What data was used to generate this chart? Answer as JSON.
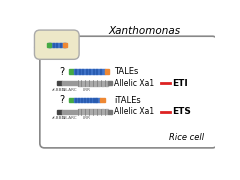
{
  "title": "Xanthomonas",
  "bottom_label": "Rice cell",
  "row1_label": "TALEs",
  "row2_label": "iTALEs",
  "allelic_label": "Allelic Xa1",
  "eti_label": "ETI",
  "ets_label": "ETS",
  "question_mark": "?",
  "nb_arc_label": "NB-ARC",
  "lrr_label": "LRR",
  "zf_bbd_label": "zf-BBD",
  "cell_border_color": "#888888",
  "bacterium_body_color": "#ede8c8",
  "bacterium_border_color": "#aaaaaa",
  "tale_green": "#44aa44",
  "tale_blue": "#4477cc",
  "tale_blue_dark": "#2255aa",
  "tale_orange": "#ee8833",
  "nlr_black": "#444444",
  "nlr_gray": "#999999",
  "nlr_lrr": "#aaaaaa",
  "nlr_tip": "#777777",
  "red_line": "#dd2222",
  "flagellum_color": "#aaaaaa"
}
